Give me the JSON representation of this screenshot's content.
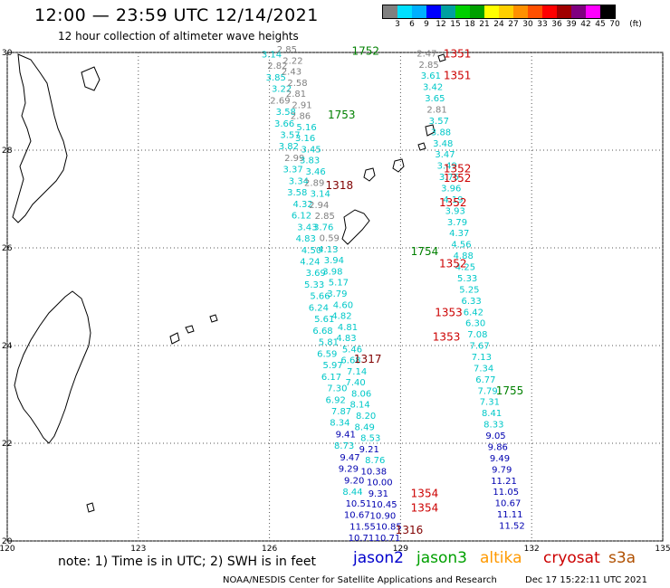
{
  "header": {
    "title": "12:00 — 23:59 UTC 12/14/2021",
    "subtitle": "12 hour collection of altimeter wave heights"
  },
  "legend": {
    "unit": "(ft)",
    "ticks": [
      "3",
      "6",
      "9",
      "12",
      "15",
      "18",
      "21",
      "24",
      "27",
      "30",
      "33",
      "36",
      "39",
      "42",
      "45",
      "70"
    ],
    "colors": [
      "#808080",
      "#00e0ff",
      "#00b0ff",
      "#0000ff",
      "#00a0a0",
      "#00d000",
      "#00a000",
      "#ffff00",
      "#ffd000",
      "#ff9000",
      "#ff5000",
      "#ff0000",
      "#a00000",
      "#800080",
      "#ff00ff",
      "#000000"
    ]
  },
  "axes": {
    "lon_labels": [
      "120",
      "123",
      "126",
      "129",
      "132",
      "135"
    ],
    "lat_labels": [
      "30",
      "28",
      "26",
      "24",
      "22",
      "20"
    ]
  },
  "satellites": [
    {
      "name": "jason2",
      "color": "#0000cc"
    },
    {
      "name": "jason3",
      "color": "#00a000"
    },
    {
      "name": "altika",
      "color": "#ff9900"
    },
    {
      "name": "cryosat",
      "color": "#cc0000"
    },
    {
      "name": "s3a",
      "color": "#b05000"
    }
  ],
  "footer": {
    "note": "note: 1) Time is in UTC; 2) SWH is in feet",
    "credit": "NOAA/NESDIS Center for Satellite Applications and Research",
    "date": "Dec 17 15:22:11 UTC 2021"
  },
  "pass_labels": [
    {
      "t": "1752",
      "lon": 128.2,
      "lat": 29.95,
      "c": "#008000"
    },
    {
      "t": "1753",
      "lon": 127.65,
      "lat": 28.65,
      "c": "#008000"
    },
    {
      "t": "1318",
      "lon": 127.6,
      "lat": 27.2,
      "c": "#800000"
    },
    {
      "t": "1351",
      "lon": 130.3,
      "lat": 29.9,
      "c": "#cc0000"
    },
    {
      "t": "1351",
      "lon": 130.3,
      "lat": 29.45,
      "c": "#cc0000"
    },
    {
      "t": "1352",
      "lon": 130.3,
      "lat": 27.55,
      "c": "#cc0000"
    },
    {
      "t": "1352",
      "lon": 130.3,
      "lat": 27.35,
      "c": "#cc0000"
    },
    {
      "t": "1352",
      "lon": 130.2,
      "lat": 26.85,
      "c": "#cc0000"
    },
    {
      "t": "1754",
      "lon": 129.55,
      "lat": 25.85,
      "c": "#008000"
    },
    {
      "t": "1352",
      "lon": 130.2,
      "lat": 25.6,
      "c": "#cc0000"
    },
    {
      "t": "1353",
      "lon": 130.1,
      "lat": 24.6,
      "c": "#cc0000"
    },
    {
      "t": "1353",
      "lon": 130.05,
      "lat": 24.1,
      "c": "#cc0000"
    },
    {
      "t": "1317",
      "lon": 128.25,
      "lat": 23.65,
      "c": "#800000"
    },
    {
      "t": "1755",
      "lon": 131.5,
      "lat": 23.0,
      "c": "#008000"
    },
    {
      "t": "1354",
      "lon": 129.55,
      "lat": 20.9,
      "c": "#cc0000"
    },
    {
      "t": "1354",
      "lon": 129.55,
      "lat": 20.6,
      "c": "#cc0000"
    },
    {
      "t": "1316",
      "lon": 129.2,
      "lat": 20.15,
      "c": "#800000"
    }
  ],
  "track_a": [
    {
      "v": "3.14",
      "c": "#00c8c8"
    },
    {
      "v": "2.82",
      "c": "#808080"
    },
    {
      "v": "3.85",
      "c": "#00c8c8"
    },
    {
      "v": "3.22",
      "c": "#00c8c8"
    },
    {
      "v": "2.69",
      "c": "#808080"
    },
    {
      "v": "3.58",
      "c": "#00c8c8"
    },
    {
      "v": "3.66",
      "c": "#00c8c8"
    },
    {
      "v": "3.57",
      "c": "#00c8c8"
    },
    {
      "v": "3.82",
      "c": "#00c8c8"
    },
    {
      "v": "2.99",
      "c": "#808080"
    },
    {
      "v": "3.37",
      "c": "#00c8c8"
    },
    {
      "v": "3.34",
      "c": "#00c8c8"
    },
    {
      "v": "3.58",
      "c": "#00c8c8"
    },
    {
      "v": "4.32",
      "c": "#00c8c8"
    },
    {
      "v": "6.12",
      "c": "#00c8c8"
    },
    {
      "v": "3.43",
      "c": "#00c8c8"
    },
    {
      "v": "4.83",
      "c": "#00c8c8"
    },
    {
      "v": "4.50",
      "c": "#00c8c8"
    },
    {
      "v": "4.24",
      "c": "#00c8c8"
    },
    {
      "v": "3.69",
      "c": "#00c8c8"
    },
    {
      "v": "5.33",
      "c": "#00c8c8"
    },
    {
      "v": "5.66",
      "c": "#00c8c8"
    },
    {
      "v": "6.24",
      "c": "#00c8c8"
    },
    {
      "v": "5.61",
      "c": "#00c8c8"
    },
    {
      "v": "6.68",
      "c": "#00c8c8"
    },
    {
      "v": "5.81",
      "c": "#00c8c8"
    },
    {
      "v": "6.59",
      "c": "#00c8c8"
    },
    {
      "v": "5.97",
      "c": "#00c8c8"
    },
    {
      "v": "6.17",
      "c": "#00c8c8"
    },
    {
      "v": "7.30",
      "c": "#00c8c8"
    },
    {
      "v": "6.92",
      "c": "#00c8c8"
    },
    {
      "v": "7.87",
      "c": "#00c8c8"
    },
    {
      "v": "8.34",
      "c": "#00c8c8"
    },
    {
      "v": "9.41",
      "c": "#0000b0"
    },
    {
      "v": "8.73",
      "c": "#00c8c8"
    },
    {
      "v": "9.47",
      "c": "#0000b0"
    },
    {
      "v": "9.29",
      "c": "#0000b0"
    },
    {
      "v": "9.20",
      "c": "#0000b0"
    },
    {
      "v": "8.44",
      "c": "#00c8c8"
    },
    {
      "v": "10.51",
      "c": "#0000b0"
    },
    {
      "v": "10.67",
      "c": "#0000b0"
    },
    {
      "v": "11.55",
      "c": "#0000b0"
    },
    {
      "v": "10.71",
      "c": "#0000b0"
    }
  ],
  "track_b": [
    {
      "v": "2.85",
      "c": "#808080"
    },
    {
      "v": "2.22",
      "c": "#808080"
    },
    {
      "v": "2.43",
      "c": "#808080"
    },
    {
      "v": "2.58",
      "c": "#808080"
    },
    {
      "v": "2.81",
      "c": "#808080"
    },
    {
      "v": "2.91",
      "c": "#808080"
    },
    {
      "v": "2.86",
      "c": "#808080"
    },
    {
      "v": "5.16",
      "c": "#00c8c8"
    },
    {
      "v": "3.16",
      "c": "#00c8c8"
    },
    {
      "v": "3.45",
      "c": "#00c8c8"
    },
    {
      "v": "3.83",
      "c": "#00c8c8"
    },
    {
      "v": "3.46",
      "c": "#00c8c8"
    },
    {
      "v": "2.89",
      "c": "#808080"
    },
    {
      "v": "3.14",
      "c": "#00c8c8"
    },
    {
      "v": "2.94",
      "c": "#808080"
    },
    {
      "v": "2.85",
      "c": "#808080"
    },
    {
      "v": "3.76",
      "c": "#00c8c8"
    },
    {
      "v": "0.59",
      "c": "#808080"
    },
    {
      "v": "4.13",
      "c": "#00c8c8"
    },
    {
      "v": "3.94",
      "c": "#00c8c8"
    },
    {
      "v": "3.98",
      "c": "#00c8c8"
    },
    {
      "v": "5.17",
      "c": "#00c8c8"
    },
    {
      "v": "3.79",
      "c": "#00c8c8"
    },
    {
      "v": "4.60",
      "c": "#00c8c8"
    },
    {
      "v": "4.82",
      "c": "#00c8c8"
    },
    {
      "v": "4.81",
      "c": "#00c8c8"
    },
    {
      "v": "4.83",
      "c": "#00c8c8"
    },
    {
      "v": "5.46",
      "c": "#00c8c8"
    },
    {
      "v": "6.68",
      "c": "#00c8c8"
    },
    {
      "v": "7.14",
      "c": "#00c8c8"
    },
    {
      "v": "7.40",
      "c": "#00c8c8"
    },
    {
      "v": "8.06",
      "c": "#00c8c8"
    },
    {
      "v": "8.14",
      "c": "#00c8c8"
    },
    {
      "v": "8.20",
      "c": "#00c8c8"
    },
    {
      "v": "8.49",
      "c": "#00c8c8"
    },
    {
      "v": "8.53",
      "c": "#00c8c8"
    },
    {
      "v": "9.21",
      "c": "#0000b0"
    },
    {
      "v": "8.76",
      "c": "#00c8c8"
    },
    {
      "v": "10.38",
      "c": "#0000b0"
    },
    {
      "v": "10.00",
      "c": "#0000b0"
    },
    {
      "v": "9.31",
      "c": "#0000b0"
    },
    {
      "v": "10.45",
      "c": "#0000b0"
    },
    {
      "v": "10.90",
      "c": "#0000b0"
    },
    {
      "v": "10.85",
      "c": "#0000b0"
    },
    {
      "v": "10.71",
      "c": "#0000b0"
    }
  ],
  "track_c": [
    {
      "v": "2.47",
      "c": "#808080"
    },
    {
      "v": "2.85",
      "c": "#808080"
    },
    {
      "v": "3.61",
      "c": "#00c8c8"
    },
    {
      "v": "3.42",
      "c": "#00c8c8"
    },
    {
      "v": "3.65",
      "c": "#00c8c8"
    },
    {
      "v": "2.81",
      "c": "#808080"
    },
    {
      "v": "3.57",
      "c": "#00c8c8"
    },
    {
      "v": "3.88",
      "c": "#00c8c8"
    },
    {
      "v": "3.48",
      "c": "#00c8c8"
    },
    {
      "v": "3.47",
      "c": "#00c8c8"
    },
    {
      "v": "3.49",
      "c": "#00c8c8"
    },
    {
      "v": "3.75",
      "c": "#00c8c8"
    },
    {
      "v": "3.96",
      "c": "#00c8c8"
    },
    {
      "v": "4.19",
      "c": "#00c8c8"
    },
    {
      "v": "3.93",
      "c": "#00c8c8"
    },
    {
      "v": "3.79",
      "c": "#00c8c8"
    },
    {
      "v": "4.37",
      "c": "#00c8c8"
    },
    {
      "v": "4.56",
      "c": "#00c8c8"
    },
    {
      "v": "4.88",
      "c": "#00c8c8"
    },
    {
      "v": "4.25",
      "c": "#00c8c8"
    },
    {
      "v": "5.33",
      "c": "#00c8c8"
    },
    {
      "v": "5.25",
      "c": "#00c8c8"
    },
    {
      "v": "6.33",
      "c": "#00c8c8"
    },
    {
      "v": "6.42",
      "c": "#00c8c8"
    },
    {
      "v": "6.30",
      "c": "#00c8c8"
    },
    {
      "v": "7.08",
      "c": "#00c8c8"
    },
    {
      "v": "7.67",
      "c": "#00c8c8"
    },
    {
      "v": "7.13",
      "c": "#00c8c8"
    },
    {
      "v": "7.34",
      "c": "#00c8c8"
    },
    {
      "v": "6.77",
      "c": "#00c8c8"
    },
    {
      "v": "7.79",
      "c": "#00c8c8"
    },
    {
      "v": "7.31",
      "c": "#00c8c8"
    },
    {
      "v": "8.41",
      "c": "#00c8c8"
    },
    {
      "v": "8.33",
      "c": "#00c8c8"
    },
    {
      "v": "9.05",
      "c": "#0000b0"
    },
    {
      "v": "9.86",
      "c": "#0000b0"
    },
    {
      "v": "9.49",
      "c": "#0000b0"
    },
    {
      "v": "9.79",
      "c": "#0000b0"
    },
    {
      "v": "11.21",
      "c": "#0000b0"
    },
    {
      "v": "11.05",
      "c": "#0000b0"
    },
    {
      "v": "10.67",
      "c": "#0000b0"
    },
    {
      "v": "11.11",
      "c": "#0000b0"
    },
    {
      "v": "11.52",
      "c": "#0000b0"
    }
  ]
}
